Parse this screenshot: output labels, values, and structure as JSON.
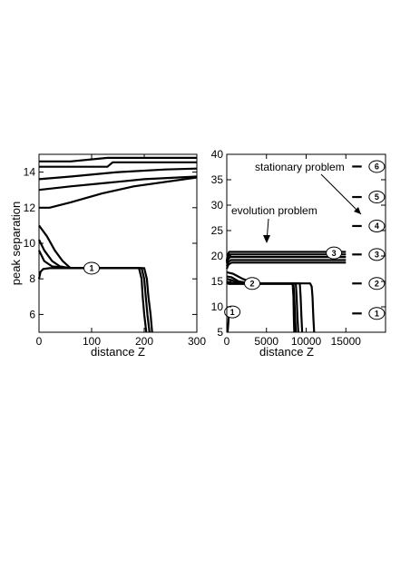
{
  "chart_data": [
    {
      "type": "line",
      "panel": "left",
      "xlabel": "distance Z",
      "ylabel": "peak separation",
      "xlim": [
        0,
        300
      ],
      "ylim": [
        5,
        15
      ],
      "xticks": [
        "0",
        "100",
        "200",
        "300"
      ],
      "yticks": [
        "6",
        "8",
        "10",
        "12",
        "14"
      ],
      "grid": false,
      "series": [
        {
          "x": [
            0,
            60,
            130,
            300
          ],
          "y": [
            14.6,
            14.6,
            14.8,
            14.8
          ]
        },
        {
          "x": [
            0,
            130,
            140,
            300
          ],
          "y": [
            14.3,
            14.3,
            14.55,
            14.55
          ]
        },
        {
          "x": [
            0,
            60,
            150,
            240,
            300
          ],
          "y": [
            13.6,
            13.75,
            14.0,
            14.15,
            14.2
          ]
        },
        {
          "x": [
            0,
            60,
            130,
            200,
            300
          ],
          "y": [
            13.0,
            13.2,
            13.4,
            13.6,
            13.75
          ]
        },
        {
          "x": [
            0,
            20,
            60,
            120,
            180,
            300
          ],
          "y": [
            12.0,
            12.0,
            12.3,
            12.8,
            13.2,
            13.7
          ]
        },
        {
          "x": [
            0,
            15,
            30,
            45,
            60,
            190,
            195,
            197,
            200,
            204
          ],
          "y": [
            11.0,
            10.4,
            9.6,
            9.0,
            8.6,
            8.6,
            8.0,
            7.0,
            6.0,
            5.0
          ]
        },
        {
          "x": [
            0,
            10,
            25,
            40,
            60,
            195,
            200,
            203,
            206,
            210
          ],
          "y": [
            10.2,
            9.6,
            9.0,
            8.7,
            8.6,
            8.6,
            8.0,
            7.0,
            6.0,
            5.0
          ]
        },
        {
          "x": [
            0,
            10,
            25,
            60,
            200,
            205,
            208,
            212,
            215
          ],
          "y": [
            9.6,
            9.0,
            8.7,
            8.6,
            8.6,
            8.0,
            7.0,
            6.0,
            5.0
          ]
        },
        {
          "x": [
            0,
            3,
            8,
            20,
            190
          ],
          "y": [
            8.0,
            8.4,
            8.55,
            8.6,
            8.6
          ]
        }
      ],
      "annotations": [
        {
          "label": "1",
          "x": 100,
          "y": 8.6
        }
      ]
    },
    {
      "type": "line",
      "panel": "right",
      "xlabel": "distance Z",
      "ylabel": "",
      "xlim": [
        0,
        20000
      ],
      "ylim": [
        5,
        40
      ],
      "xticks": [
        "0",
        "5000",
        "10000",
        "15000"
      ],
      "yticks": [
        "5",
        "10",
        "15",
        "20",
        "25",
        "30",
        "35",
        "40"
      ],
      "grid": false,
      "series": [
        {
          "x": [
            0,
            100,
            300,
            15000
          ],
          "y": [
            19.0,
            20.2,
            20.8,
            20.8
          ]
        },
        {
          "x": [
            0,
            100,
            300,
            15000
          ],
          "y": [
            18.8,
            19.8,
            20.3,
            20.3
          ]
        },
        {
          "x": [
            0,
            150,
            400,
            15000
          ],
          "y": [
            18.5,
            19.3,
            19.8,
            19.8
          ]
        },
        {
          "x": [
            0,
            200,
            500,
            15000
          ],
          "y": [
            18.0,
            18.8,
            19.2,
            19.2
          ]
        },
        {
          "x": [
            0,
            200,
            600,
            15000
          ],
          "y": [
            17.5,
            18.3,
            18.7,
            18.7
          ]
        },
        {
          "x": [
            0,
            800,
            2000,
            3500,
            8400,
            8500,
            8600,
            8700
          ],
          "y": [
            16.8,
            16.5,
            15.5,
            14.6,
            14.6,
            12.0,
            8.0,
            5.0
          ]
        },
        {
          "x": [
            0,
            600,
            1500,
            3000,
            8700,
            8800,
            8900,
            9000
          ],
          "y": [
            16.0,
            15.8,
            15.0,
            14.6,
            14.6,
            12.0,
            8.0,
            5.0
          ]
        },
        {
          "x": [
            0,
            500,
            1200,
            2500,
            9200,
            9300,
            9400,
            9500
          ],
          "y": [
            15.5,
            15.3,
            14.9,
            14.6,
            14.6,
            12.0,
            8.0,
            5.0
          ]
        },
        {
          "x": [
            0,
            300,
            800,
            1500,
            10500,
            10700,
            10800,
            10900,
            11000
          ],
          "y": [
            15.0,
            14.8,
            14.7,
            14.6,
            14.6,
            14.0,
            12.0,
            8.0,
            5.0
          ]
        },
        {
          "x": [
            0,
            100,
            300,
            8300,
            8400,
            8450,
            8500
          ],
          "y": [
            14.8,
            14.6,
            14.5,
            14.5,
            12.0,
            8.0,
            5.0
          ]
        },
        {
          "x": [
            100,
            200,
            250,
            300
          ],
          "y": [
            5.0,
            7.0,
            8.5,
            9.5
          ]
        }
      ],
      "annotations": [
        {
          "label": "1",
          "x": 700,
          "y": 9.0
        },
        {
          "label": "2",
          "x": 3200,
          "y": 14.6
        },
        {
          "label": "3",
          "x": 13500,
          "y": 20.6
        },
        {
          "label": "1",
          "x": 17000,
          "y": 8.7
        },
        {
          "label": "2",
          "x": 17000,
          "y": 14.6
        },
        {
          "label": "3",
          "x": 17000,
          "y": 20.3
        },
        {
          "label": "4",
          "x": 17000,
          "y": 25.9
        },
        {
          "label": "5",
          "x": 17000,
          "y": 31.6
        },
        {
          "label": "6",
          "x": 17000,
          "y": 37.6
        }
      ],
      "text_annotations": [
        "stationary problem",
        "evolution problem"
      ],
      "stationary_levels": [
        8.7,
        14.6,
        20.3,
        25.9,
        31.6,
        37.6
      ]
    }
  ]
}
